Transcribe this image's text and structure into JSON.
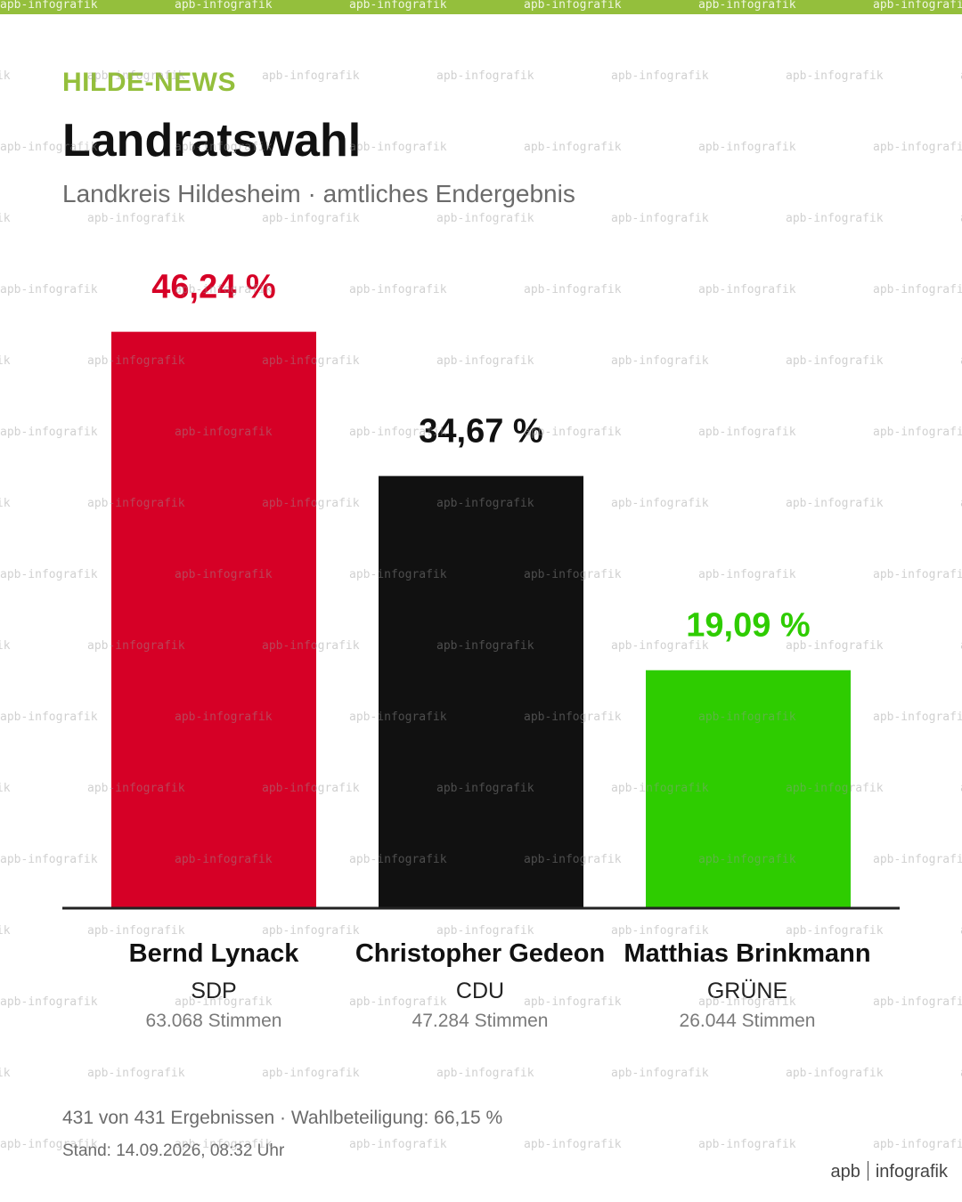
{
  "header": {
    "brand": "HILDE-NEWS",
    "title": "Landratswahl",
    "subtitle": "Landkreis Hildesheim · amtliches Endergebnis"
  },
  "chart_data": {
    "type": "bar",
    "categories": [
      "Bernd Lynack",
      "Christopher Gedeon",
      "Matthias Brinkmann"
    ],
    "values": [
      46.24,
      34.67,
      19.09
    ],
    "value_labels": [
      "46,24 %",
      "34,67 %",
      "19,09 %"
    ],
    "colors": [
      "#d60026",
      "#111111",
      "#2ecc00"
    ],
    "label_colors": [
      "#d60026",
      "#111111",
      "#2ecc00"
    ],
    "ylim": [
      0,
      50
    ],
    "grid": false,
    "legend": "none"
  },
  "candidates": [
    {
      "name": "Bernd Lynack",
      "party": "SDP",
      "votes": "63.068 Stimmen"
    },
    {
      "name": "Christopher Gedeon",
      "party": "CDU",
      "votes": "47.284 Stimmen"
    },
    {
      "name": "Matthias Brinkmann",
      "party": "GRÜNE",
      "votes": "26.044 Stimmen"
    }
  ],
  "footer": {
    "results": "431 von 431 Ergebnissen · Wahlbeteiligung: 66,15 %",
    "timestamp": "Stand: 14.09.2026, 08:32 Uhr",
    "logo_left": "apb",
    "logo_right": "infografik"
  },
  "watermark": "apb-infografik"
}
